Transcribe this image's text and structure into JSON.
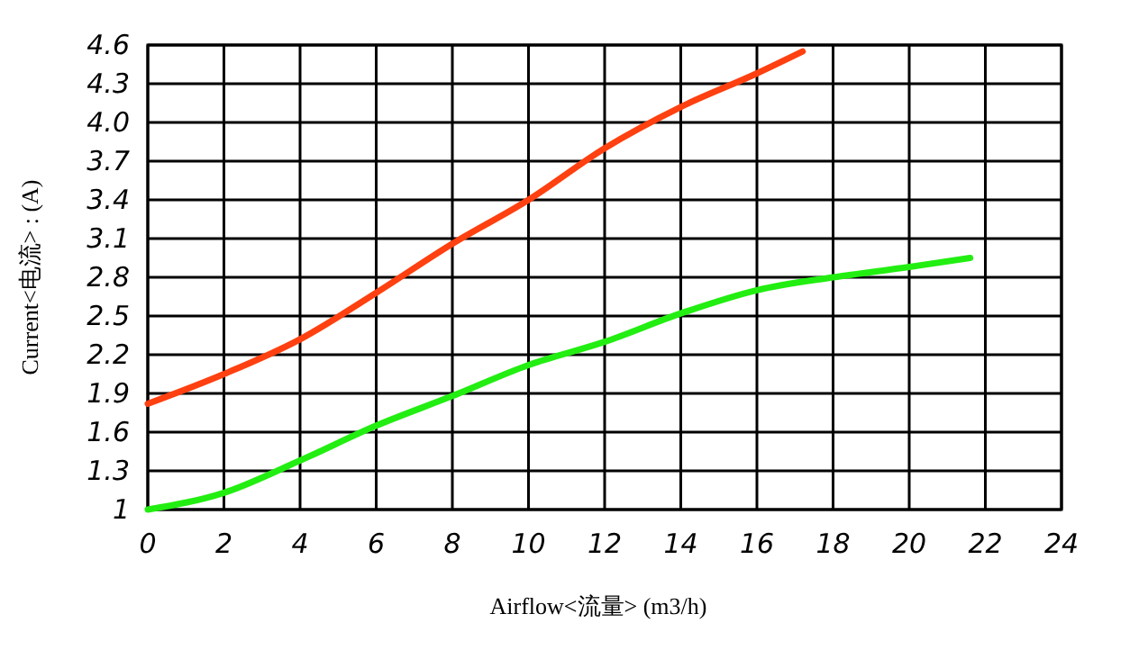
{
  "chart_data": {
    "type": "line",
    "xlabel": "Airflow<流量> (m3/h)",
    "ylabel": "Current<电流> : (A)",
    "xlim": [
      0,
      24
    ],
    "xticks": [
      0,
      2,
      4,
      6,
      8,
      10,
      12,
      14,
      16,
      18,
      20,
      22,
      24
    ],
    "ylim": [
      1,
      4.6
    ],
    "yticks": [
      1,
      1.3,
      1.6,
      1.9,
      2.2,
      2.5,
      2.8,
      3.1,
      3.4,
      3.7,
      {
        "value": 4,
        "label": "4.0"
      },
      4.3,
      4.6
    ],
    "grid": true,
    "marker": "none",
    "line_style": "solid",
    "series": [
      {
        "color": "#ff4010",
        "x": [
          0,
          2,
          4,
          6,
          8,
          10,
          12,
          14,
          16,
          17.2
        ],
        "values": [
          1.82,
          2.05,
          2.32,
          2.68,
          3.06,
          3.4,
          3.8,
          4.12,
          4.38,
          4.55
        ]
      },
      {
        "color": "#22ee11",
        "x": [
          0,
          2,
          4,
          6,
          8,
          10,
          12,
          14,
          16,
          18,
          20,
          21.6
        ],
        "values": [
          1.0,
          1.13,
          1.38,
          1.65,
          1.88,
          2.12,
          2.3,
          2.52,
          2.7,
          2.8,
          2.88,
          2.95
        ]
      }
    ]
  }
}
